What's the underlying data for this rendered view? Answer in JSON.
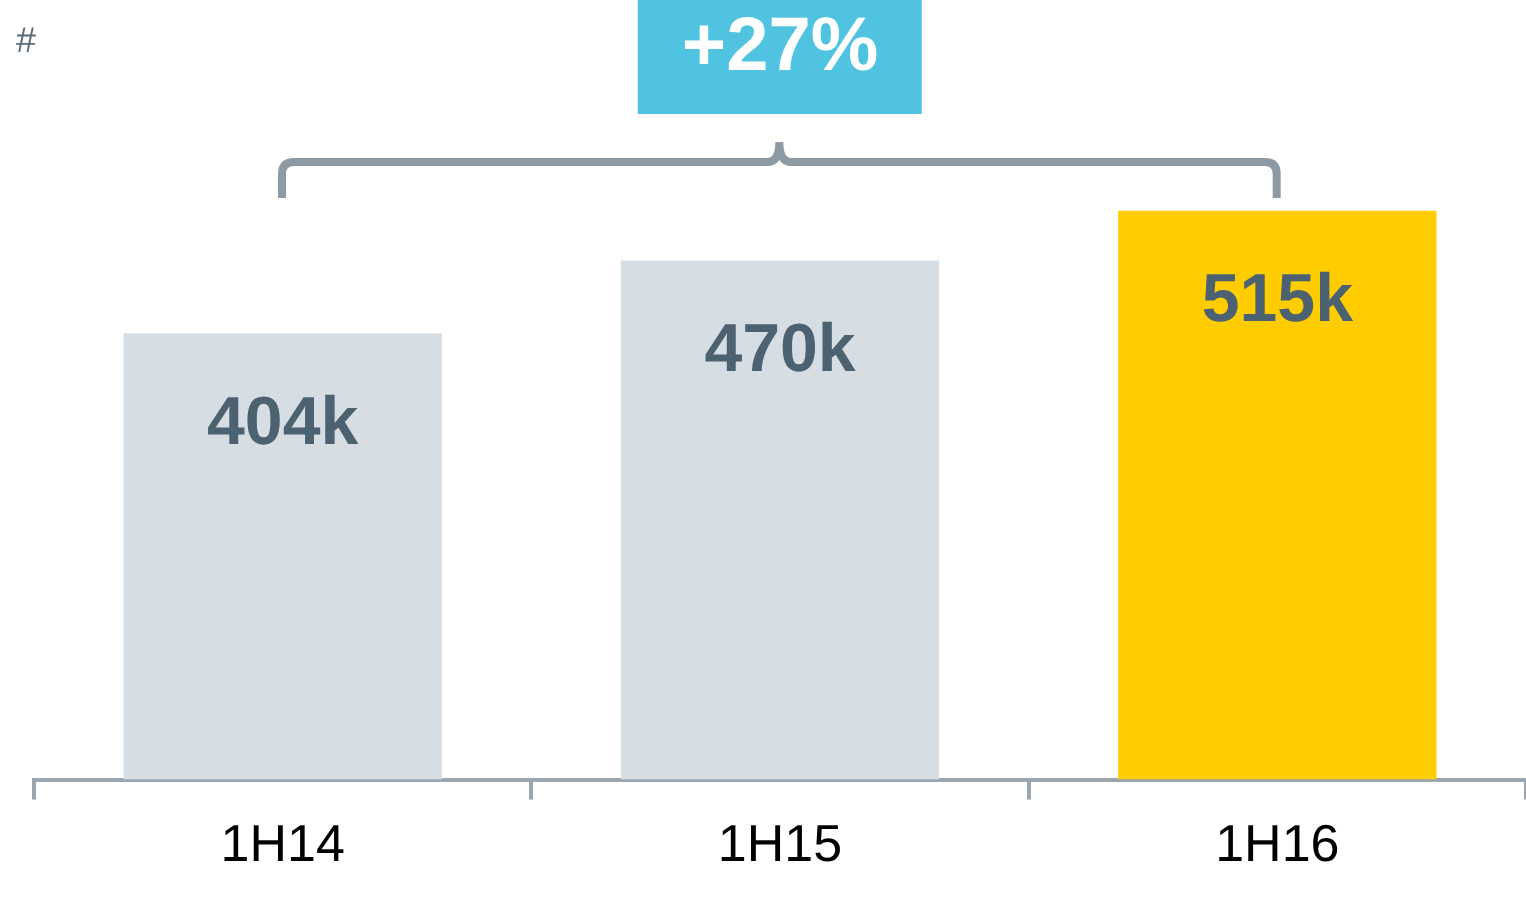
{
  "chart_data": {
    "type": "bar",
    "categories": [
      "1H14",
      "1H15",
      "1H16"
    ],
    "values": [
      404000,
      470000,
      515000
    ],
    "colors": [
      "#d6dee3",
      "#d6dee3",
      "#ffcc00"
    ],
    "value_labels": [
      "404k",
      "470k",
      "515k"
    ],
    "annotations": [
      "#",
      "+27%"
    ],
    "grid": false,
    "legend": false
  }
}
